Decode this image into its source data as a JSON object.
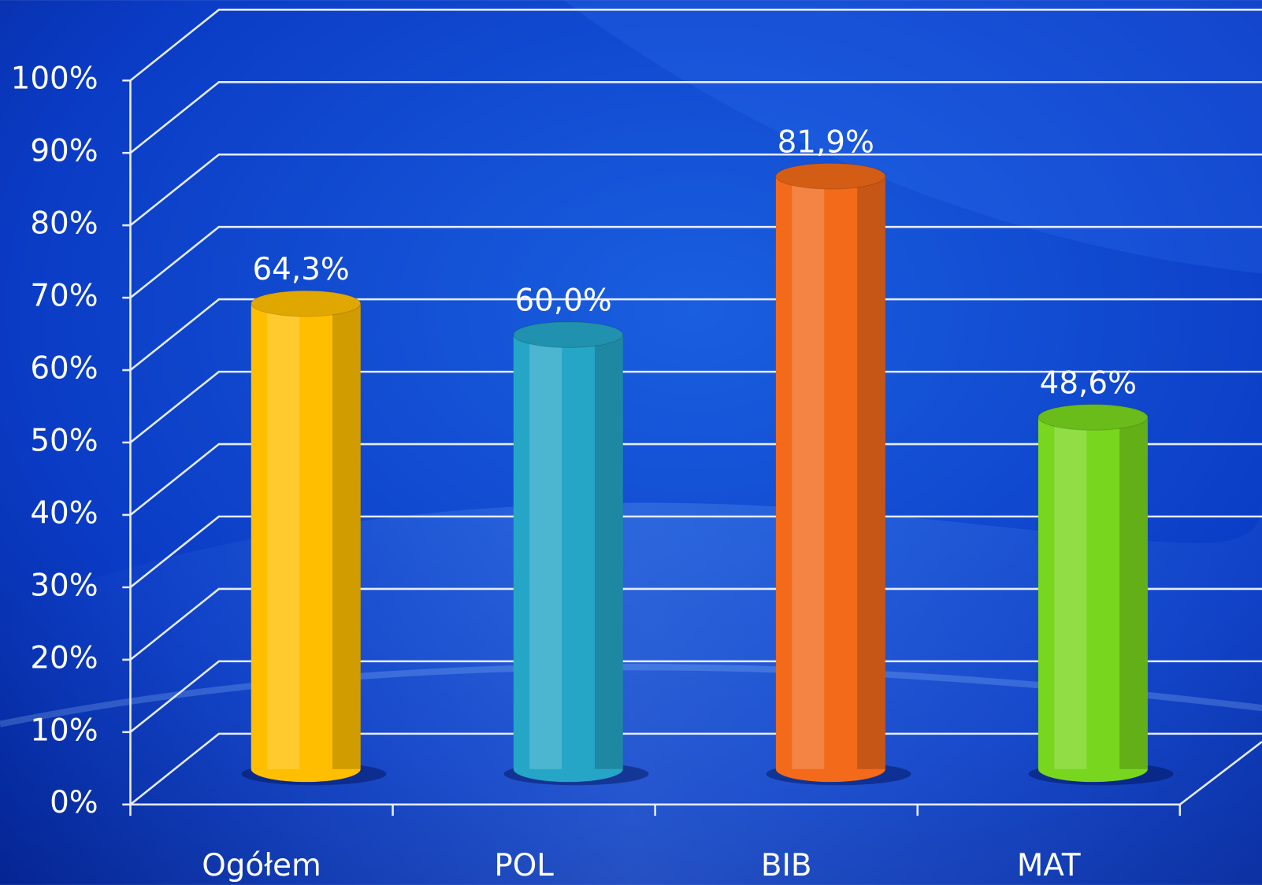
{
  "chart_data": {
    "type": "bar",
    "categories": [
      "Ogółem",
      "POL",
      "BIB",
      "MAT"
    ],
    "values": [
      64.3,
      60.0,
      81.9,
      48.6
    ],
    "value_labels": [
      "64,3%",
      "60,0%",
      "81,9%",
      "48,6%"
    ],
    "colors": [
      "#ffbf00",
      "#25a6c6",
      "#f26a1a",
      "#78d61e"
    ],
    "ylim": [
      0,
      100
    ],
    "yticks": [
      {
        "value": 0,
        "label": "0%"
      },
      {
        "value": 10,
        "label": "10%"
      },
      {
        "value": 20,
        "label": "20%"
      },
      {
        "value": 30,
        "label": "30%"
      },
      {
        "value": 40,
        "label": "40%"
      },
      {
        "value": 50,
        "label": "50%"
      },
      {
        "value": 60,
        "label": "60%"
      },
      {
        "value": 70,
        "label": "70%"
      },
      {
        "value": 80,
        "label": "80%"
      },
      {
        "value": 90,
        "label": "90%"
      },
      {
        "value": 100,
        "label": "100%"
      }
    ],
    "grid": true
  }
}
